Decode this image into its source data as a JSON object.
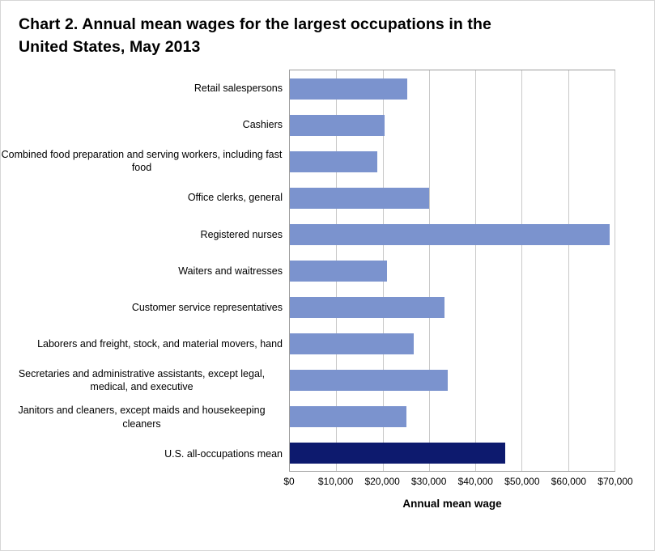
{
  "chart_data": {
    "type": "bar",
    "orientation": "horizontal",
    "title": "Chart 2. Annual mean wages for the largest occupations in the United States, May 2013",
    "xlabel": "Annual mean wage",
    "ylabel": "",
    "xlim": [
      0,
      70000
    ],
    "grid": true,
    "legend": "none",
    "categories": [
      "Retail salespersons",
      "Cashiers",
      "Combined food preparation and serving workers, including fast food",
      "Office clerks, general",
      "Registered nurses",
      "Waiters and waitresses",
      "Customer service representatives",
      "Laborers and freight, stock, and material movers, hand",
      "Secretaries and administrative assistants, except legal, medical, and executive",
      "Janitors and cleaners, except maids and housekeeping cleaners",
      "U.S. all-occupations mean"
    ],
    "values": [
      25370,
      20420,
      18880,
      29990,
      68910,
      20880,
      33370,
      26690,
      34000,
      25140,
      46440
    ],
    "x_ticks": [
      0,
      10000,
      20000,
      30000,
      40000,
      50000,
      60000,
      70000
    ],
    "x_tick_labels": [
      "$0",
      "$10,000",
      "$20,000",
      "$30,000",
      "$40,000",
      "$50,000",
      "$60,000",
      "$70,000"
    ],
    "bar_color": "#7b93ce",
    "highlight_color": "#0d1a6e",
    "highlight_index": 10
  }
}
